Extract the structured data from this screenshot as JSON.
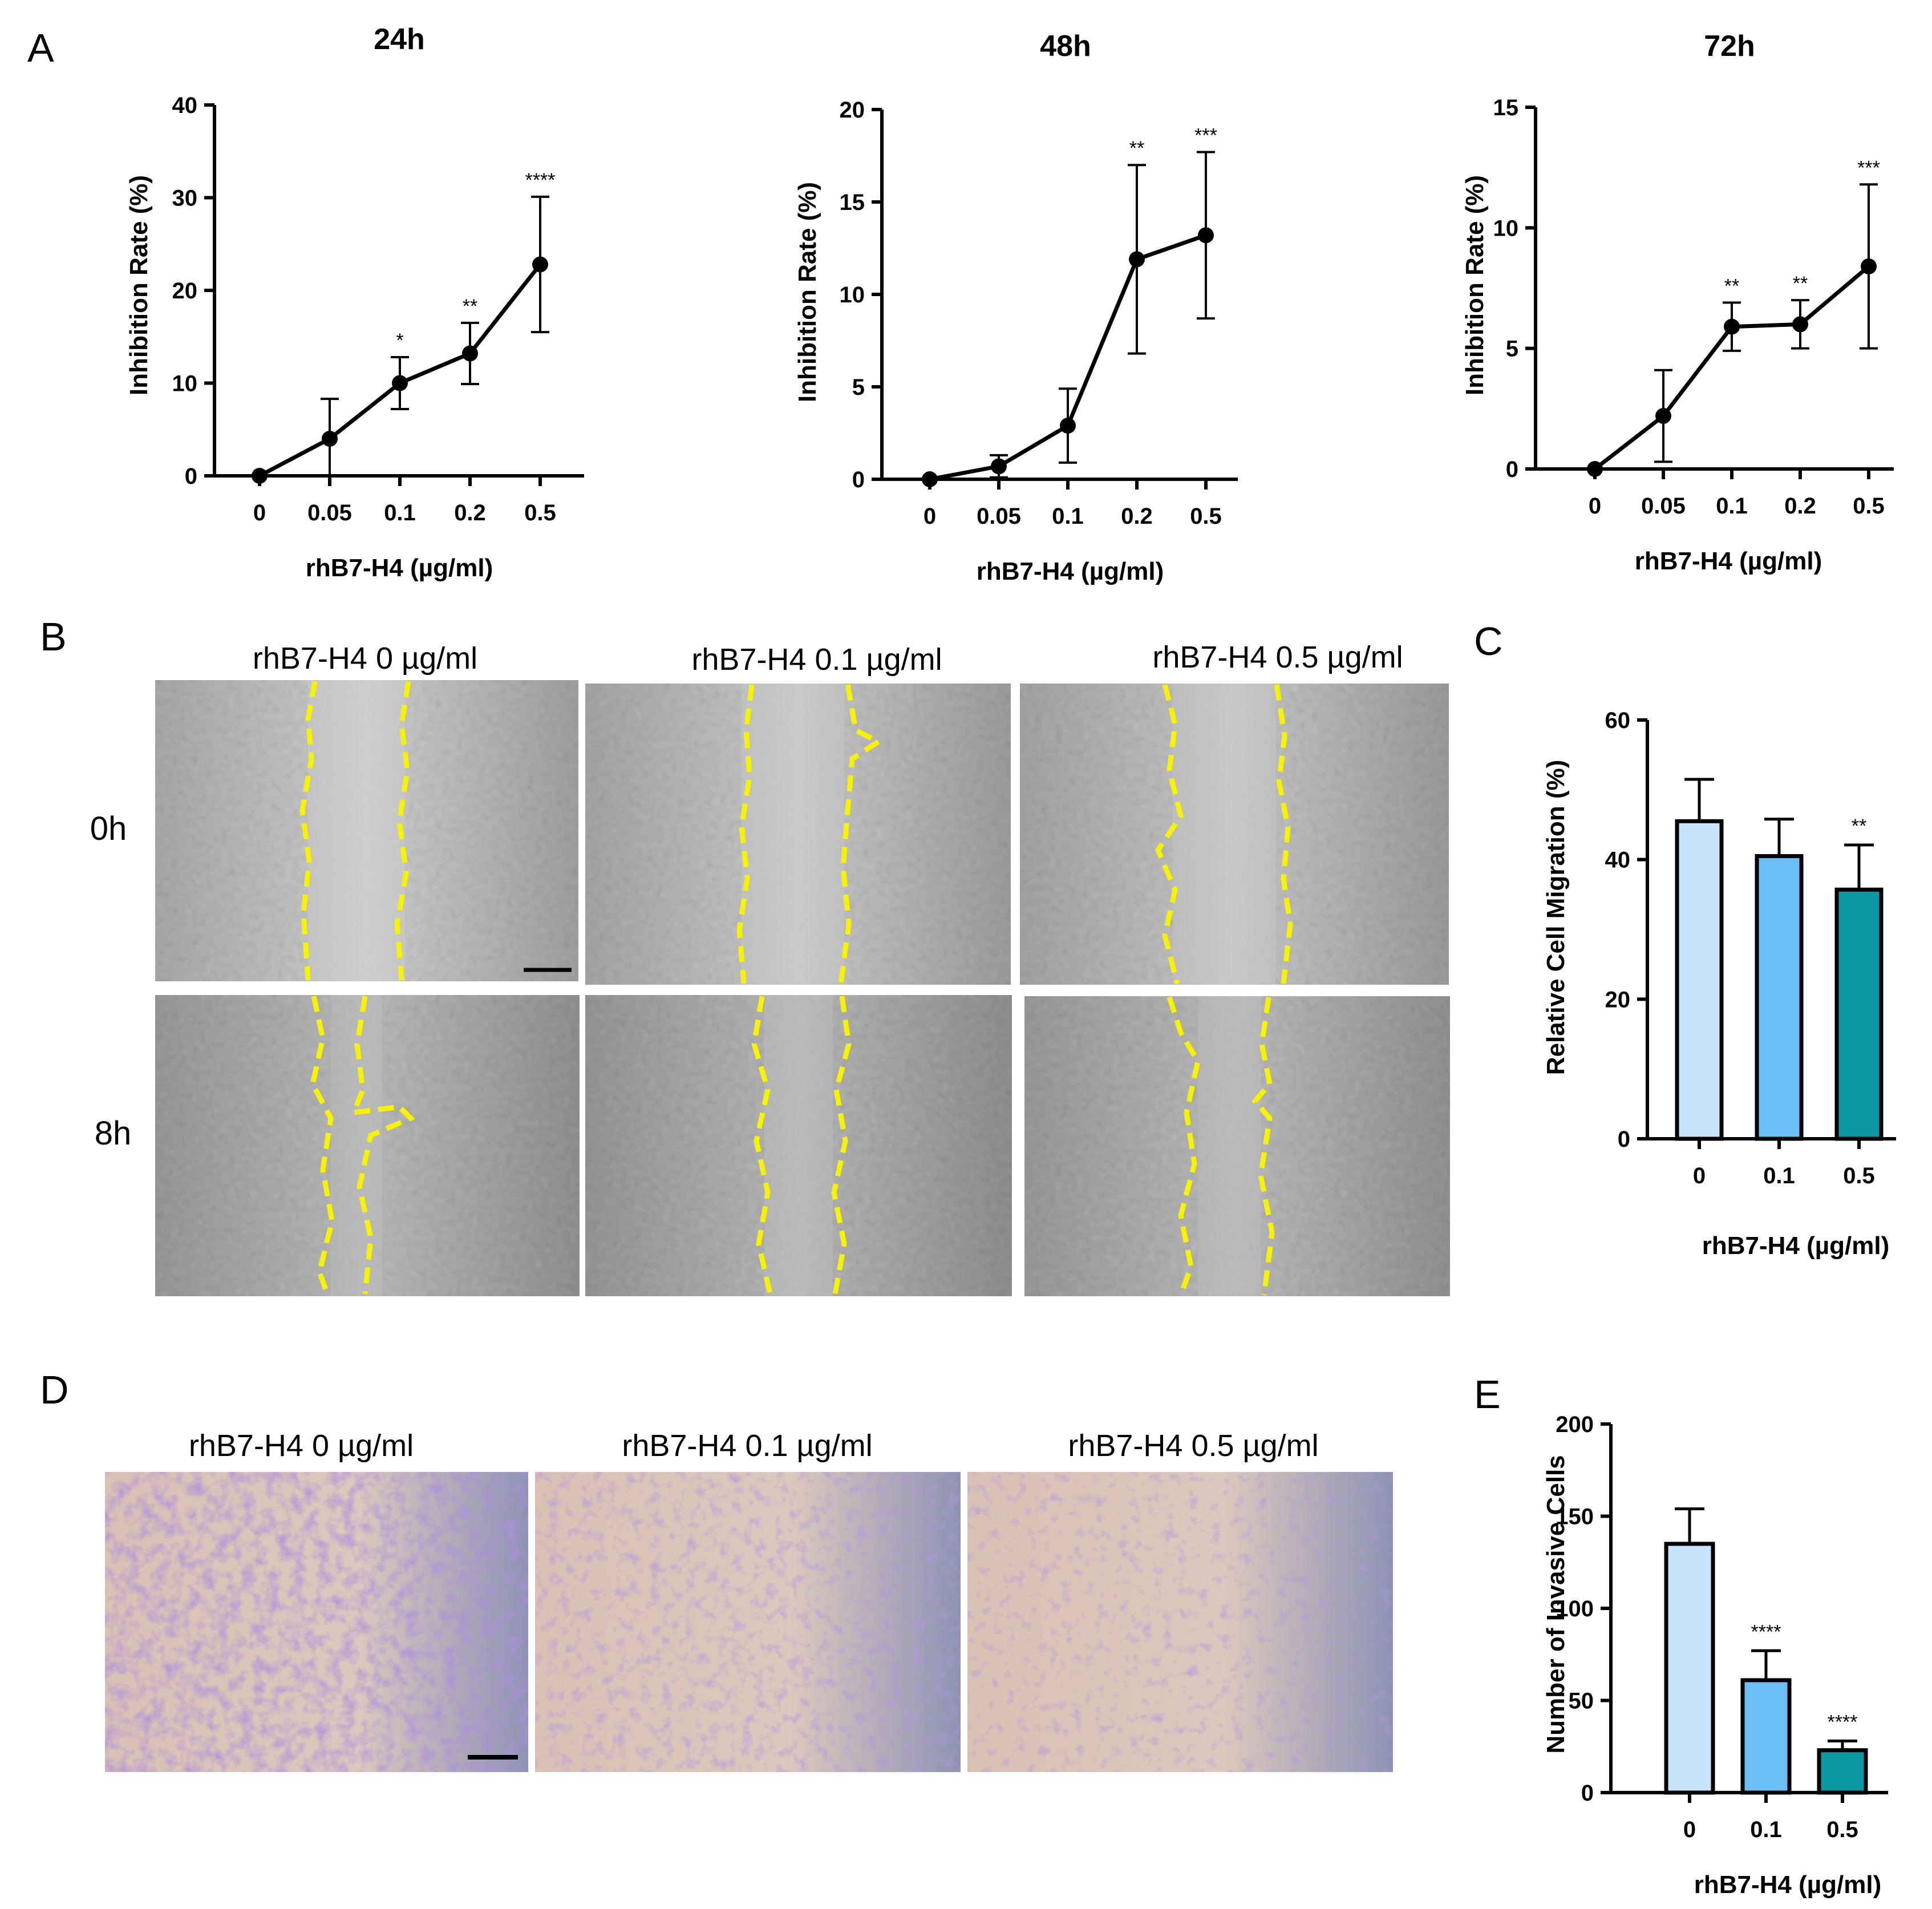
{
  "panel_letters": {
    "A": "A",
    "B": "B",
    "C": "C",
    "D": "D",
    "E": "E"
  },
  "colors": {
    "bar_0": "#c6e3fb",
    "bar_01": "#6cbef7",
    "bar_05": "#0e98a6",
    "wound_edge": "#f6f200",
    "crystal_violet": "#6f47b8"
  },
  "panel_B": {
    "conditions": [
      "rhB7-H4 0 µg/ml",
      "rhB7-H4 0.1 µg/ml",
      "rhB7-H4 0.5 µg/ml"
    ],
    "timepoints": [
      "0h",
      "8h"
    ]
  },
  "panel_D": {
    "conditions": [
      "rhB7-H4 0 µg/ml",
      "rhB7-H4 0.1 µg/ml",
      "rhB7-H4 0.5 µg/ml"
    ]
  },
  "chart_data": [
    {
      "id": "A1",
      "type": "line",
      "title": "24h",
      "xlabel": "rhB7-H4 (µg/ml)",
      "ylabel": "Inhibition Rate (%)",
      "categories": [
        "0",
        "0.05",
        "0.1",
        "0.2",
        "0.5"
      ],
      "values": [
        0,
        4,
        10,
        13.2,
        22.8
      ],
      "err": [
        0,
        4.3,
        2.8,
        3.3,
        7.3
      ],
      "significance": [
        "",
        "",
        "*",
        "**",
        "****"
      ],
      "ylim": [
        0,
        40
      ],
      "yticks": [
        0,
        10,
        20,
        30,
        40
      ]
    },
    {
      "id": "A2",
      "type": "line",
      "title": "48h",
      "xlabel": "rhB7-H4 (µg/ml)",
      "ylabel": "Inhibition Rate (%)",
      "categories": [
        "0",
        "0.05",
        "0.1",
        "0.2",
        "0.5"
      ],
      "values": [
        0,
        0.7,
        2.9,
        11.9,
        13.2
      ],
      "err": [
        0,
        0.6,
        2,
        5.1,
        4.5
      ],
      "significance": [
        "",
        "",
        "",
        "**",
        "***"
      ],
      "ylim": [
        0,
        20
      ],
      "yticks": [
        0,
        5,
        10,
        15,
        20
      ]
    },
    {
      "id": "A3",
      "type": "line",
      "title": "72h",
      "xlabel": "rhB7-H4 (µg/ml)",
      "ylabel": "Inhibition Rate (%)",
      "categories": [
        "0",
        "0.05",
        "0.1",
        "0.2",
        "0.5"
      ],
      "values": [
        0,
        2.2,
        5.9,
        6,
        8.4
      ],
      "err": [
        0,
        1.9,
        1,
        1,
        3.4
      ],
      "significance": [
        "",
        "",
        "**",
        "**",
        "***"
      ],
      "ylim": [
        0,
        15
      ],
      "yticks": [
        0,
        5,
        10,
        15
      ]
    },
    {
      "id": "C",
      "type": "bar",
      "xlabel": "rhB7-H4 (µg/ml)",
      "ylabel": "Relative Cell Migration (%)",
      "categories": [
        "0",
        "0.1",
        "0.5"
      ],
      "values": [
        45.5,
        40.5,
        35.7
      ],
      "err": [
        6,
        5.3,
        6.4
      ],
      "significance": [
        "",
        "",
        "**"
      ],
      "ylim": [
        0,
        60
      ],
      "yticks": [
        0,
        20,
        40,
        60
      ]
    },
    {
      "id": "E",
      "type": "bar",
      "xlabel": "rhB7-H4 (µg/ml)",
      "ylabel": "Number of Invasive Cells",
      "categories": [
        "0",
        "0.1",
        "0.5"
      ],
      "values": [
        135,
        61,
        23
      ],
      "err": [
        19,
        16,
        5
      ],
      "significance": [
        "",
        "****",
        "****"
      ],
      "ylim": [
        0,
        200
      ],
      "yticks": [
        0,
        50,
        100,
        150,
        200
      ]
    }
  ]
}
